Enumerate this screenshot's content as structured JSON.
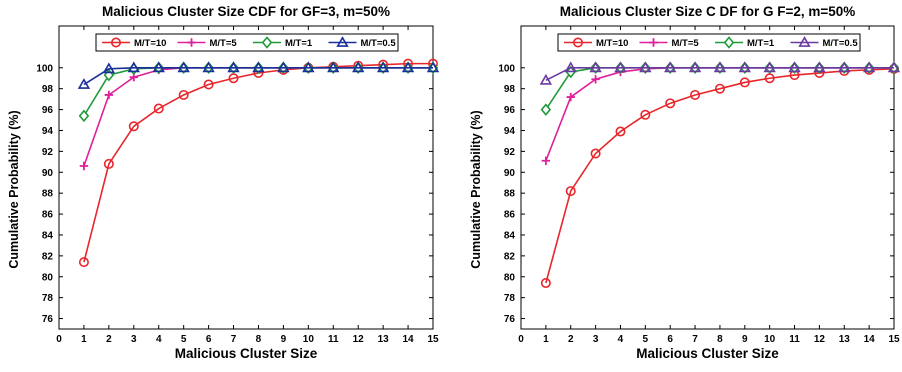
{
  "chart_data": [
    {
      "type": "line",
      "title": "Malicious Cluster Size CDF for GF=3, m=50%",
      "xlabel": "Malicious Cluster Size",
      "ylabel": "Cumulative Probability (%)",
      "xlim": [
        0,
        15
      ],
      "ylim": [
        75,
        104
      ],
      "xticks": [
        0,
        1,
        2,
        3,
        4,
        5,
        6,
        7,
        8,
        9,
        10,
        11,
        12,
        13,
        14,
        15
      ],
      "yticks": [
        76,
        78,
        80,
        82,
        84,
        86,
        88,
        90,
        92,
        94,
        96,
        98,
        100
      ],
      "grid": false,
      "legend_position": "top, horizontal",
      "x": [
        1,
        2,
        3,
        4,
        5,
        6,
        7,
        8,
        9,
        10,
        11,
        12,
        13,
        14,
        15
      ],
      "series": [
        {
          "name": "M/T=10",
          "color": "#e8262b",
          "marker": "circle",
          "values": [
            81.4,
            90.8,
            94.4,
            96.1,
            97.4,
            98.4,
            99.0,
            99.5,
            99.8,
            100.0,
            100.1,
            100.2,
            100.3,
            100.4,
            100.4
          ]
        },
        {
          "name": "M/T=5",
          "color": "#e0209a",
          "marker": "plus",
          "values": [
            90.6,
            97.4,
            99.1,
            99.8,
            100.0,
            100.0,
            100.0,
            100.0,
            100.0,
            100.0,
            100.0,
            100.0,
            100.0,
            100.0,
            100.0
          ]
        },
        {
          "name": "M/T=1",
          "color": "#1f9a3a",
          "marker": "diamond",
          "values": [
            95.4,
            99.3,
            99.9,
            100.0,
            100.0,
            100.0,
            100.0,
            100.0,
            100.0,
            100.0,
            100.0,
            100.0,
            100.0,
            100.0,
            100.0
          ]
        },
        {
          "name": "M/T=0.5",
          "color": "#1a2f9a",
          "marker": "triangle",
          "values": [
            98.4,
            99.9,
            100.0,
            100.0,
            100.0,
            100.0,
            100.0,
            100.0,
            100.0,
            100.0,
            100.0,
            100.0,
            100.0,
            100.0,
            100.0
          ]
        }
      ]
    },
    {
      "type": "line",
      "title": "Malicious Cluster Size C DF for G F=2, m=50%",
      "xlabel": "Malicious Cluster Size",
      "ylabel": "Cumulative Probability (%)",
      "xlim": [
        0,
        15
      ],
      "ylim": [
        75,
        104
      ],
      "xticks": [
        0,
        1,
        2,
        3,
        4,
        5,
        6,
        7,
        8,
        9,
        10,
        11,
        12,
        13,
        14,
        15
      ],
      "yticks": [
        76,
        78,
        80,
        82,
        84,
        86,
        88,
        90,
        92,
        94,
        96,
        98,
        100
      ],
      "grid": false,
      "legend_position": "top, horizontal",
      "x": [
        1,
        2,
        3,
        4,
        5,
        6,
        7,
        8,
        9,
        10,
        11,
        12,
        13,
        14,
        15
      ],
      "series": [
        {
          "name": "M/T=10",
          "color": "#e8262b",
          "marker": "circle",
          "values": [
            79.4,
            88.2,
            91.8,
            93.9,
            95.5,
            96.6,
            97.4,
            98.0,
            98.6,
            99.0,
            99.3,
            99.5,
            99.7,
            99.8,
            99.9
          ]
        },
        {
          "name": "M/T=5",
          "color": "#e0209a",
          "marker": "plus",
          "values": [
            91.1,
            97.2,
            98.9,
            99.6,
            99.9,
            100.0,
            100.0,
            100.0,
            100.0,
            100.0,
            100.0,
            100.0,
            100.0,
            100.0,
            100.0
          ]
        },
        {
          "name": "M/T=1",
          "color": "#1f9a3a",
          "marker": "diamond",
          "values": [
            96.0,
            99.6,
            100.0,
            100.0,
            100.0,
            100.0,
            100.0,
            100.0,
            100.0,
            100.0,
            100.0,
            100.0,
            100.0,
            100.0,
            100.0
          ]
        },
        {
          "name": "M/T=0.5",
          "color": "#6a3aa0",
          "marker": "triangle",
          "values": [
            98.8,
            100.0,
            100.0,
            100.0,
            100.0,
            100.0,
            100.0,
            100.0,
            100.0,
            100.0,
            100.0,
            100.0,
            100.0,
            100.0,
            100.0
          ]
        }
      ]
    }
  ]
}
